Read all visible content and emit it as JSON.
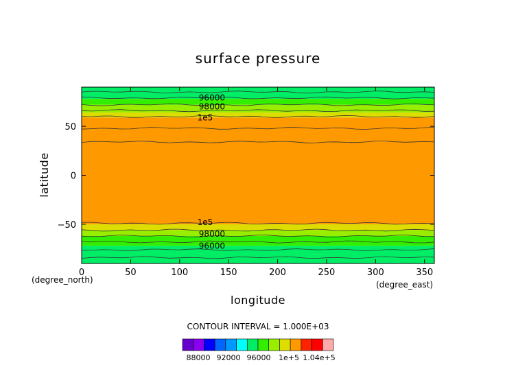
{
  "chart_data": {
    "type": "heatmap",
    "title": "surface pressure",
    "xlabel": "longitude",
    "ylabel": "latitude",
    "x_unit": "(degree_east)",
    "y_unit": "(degree_north)",
    "xlim": [
      0,
      360
    ],
    "ylim": [
      -90,
      90
    ],
    "x_ticks": [
      0,
      50,
      100,
      150,
      200,
      250,
      300,
      350
    ],
    "y_ticks": [
      -50,
      0,
      50
    ],
    "x_tick_labels": [
      "0",
      "50",
      "100",
      "150",
      "200",
      "250",
      "300",
      "350"
    ],
    "y_tick_labels": [
      "−50",
      "0",
      "50"
    ],
    "contour_interval_text": "CONTOUR INTERVAL = 1.000E+03",
    "contour_interval": 1000,
    "bands": [
      {
        "lat_min": 78,
        "lat_max": 90,
        "color": "#00ee66"
      },
      {
        "lat_min": 72,
        "lat_max": 78,
        "color": "#33ee00"
      },
      {
        "lat_min": 64,
        "lat_max": 72,
        "color": "#99ee00"
      },
      {
        "lat_min": 59,
        "lat_max": 64,
        "color": "#dddd00"
      },
      {
        "lat_min": -50,
        "lat_max": 59,
        "color": "#ff9900"
      },
      {
        "lat_min": -56,
        "lat_max": -50,
        "color": "#dddd00"
      },
      {
        "lat_min": -62,
        "lat_max": -56,
        "color": "#99ee00"
      },
      {
        "lat_min": -72,
        "lat_max": -62,
        "color": "#33ee00"
      },
      {
        "lat_min": -90,
        "lat_max": -72,
        "color": "#00ee66"
      }
    ],
    "contour_lines": [
      {
        "lat": 85
      },
      {
        "lat": 79
      },
      {
        "lat": 72
      },
      {
        "lat": 66
      },
      {
        "lat": 60
      },
      {
        "lat": 48
      },
      {
        "lat": 34
      },
      {
        "lat": -49
      },
      {
        "lat": -56
      },
      {
        "lat": -62
      },
      {
        "lat": -68
      },
      {
        "lat": -76
      },
      {
        "lat": -84
      }
    ],
    "contour_labels": [
      {
        "text": "96000",
        "lon": 133,
        "lat": 79
      },
      {
        "text": "98000",
        "lon": 133,
        "lat": 70
      },
      {
        "text": "1e5",
        "lon": 126,
        "lat": 59
      },
      {
        "text": "1e5",
        "lon": 126,
        "lat": -48
      },
      {
        "text": "98000",
        "lon": 133,
        "lat": -60
      },
      {
        "text": "96000",
        "lon": 133,
        "lat": -72
      }
    ],
    "colorbar": {
      "colors": [
        "#6600cc",
        "#8800ee",
        "#0000ff",
        "#0066ff",
        "#0099ff",
        "#00ffff",
        "#00ee66",
        "#33ee00",
        "#99ee00",
        "#dddd00",
        "#ff9900",
        "#ff2200",
        "#ff0000",
        "#ffaaaa"
      ],
      "tick_labels": [
        "88000",
        "92000",
        "96000",
        "1e+5",
        "1.04e+5"
      ]
    }
  }
}
